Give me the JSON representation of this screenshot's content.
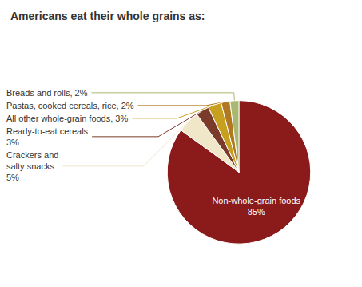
{
  "chart_data": {
    "type": "pie",
    "title": "Americans eat their whole grains as:",
    "values": [
      85,
      5,
      3,
      3,
      2,
      2
    ],
    "value_labels": [
      "Non-whole-grain foods\n85%",
      "Crackers and\nsalty snacks\n5%",
      "Ready-to-eat cereals\n3%",
      "All other whole-grain foods, 3%",
      "Pastas, cooked cereals, rice, 2%",
      "Breads and rolls, 2%"
    ],
    "colors": [
      "#8B1A1A",
      "#F0E6C8",
      "#7B3B2A",
      "#C8A020",
      "#B07820",
      "#A8B870"
    ],
    "data_labels": true
  }
}
